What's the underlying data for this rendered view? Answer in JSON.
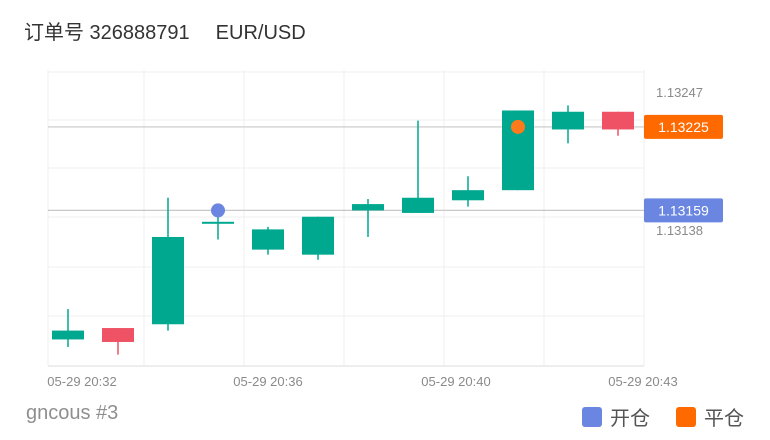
{
  "header": {
    "order_label": "订单号 326888791",
    "symbol": "EUR/USD"
  },
  "footer": {
    "account": "gncous #3"
  },
  "legend": [
    {
      "label": "开仓",
      "color": "#6b86e0"
    },
    {
      "label": "平仓",
      "color": "#ff6a00"
    }
  ],
  "colors": {
    "up": "#00a88f",
    "down": "#ee5264",
    "open_marker": "#6b86e0",
    "close_marker": "#ff7a1a",
    "close_price_badge": "#ff6a00",
    "open_price_badge": "#6b86e0"
  },
  "chart_data": {
    "type": "candlestick",
    "x_tick_labels": [
      "05-29 20:32",
      "05-29 20:36",
      "05-29 20:40",
      "05-29 20:43"
    ],
    "y_tick_labels": [
      "1.13247",
      "1.13138"
    ],
    "ylim": [
      1.13036,
      1.1327
    ],
    "grid": true,
    "candles": [
      {
        "open": 1.13057,
        "close": 1.13064,
        "high": 1.13081,
        "low": 1.13051
      },
      {
        "open": 1.13066,
        "close": 1.13055,
        "high": 1.13066,
        "low": 1.13045
      },
      {
        "open": 1.13069,
        "close": 1.13138,
        "high": 1.13169,
        "low": 1.13064
      },
      {
        "open": 1.13149,
        "close": 1.1315,
        "high": 1.13159,
        "low": 1.13136
      },
      {
        "open": 1.13128,
        "close": 1.13144,
        "high": 1.13146,
        "low": 1.13124
      },
      {
        "open": 1.13124,
        "close": 1.13154,
        "high": 1.13154,
        "low": 1.1312
      },
      {
        "open": 1.13159,
        "close": 1.13164,
        "high": 1.13168,
        "low": 1.13138
      },
      {
        "open": 1.13157,
        "close": 1.13169,
        "high": 1.1323,
        "low": 1.13157
      },
      {
        "open": 1.13167,
        "close": 1.13175,
        "high": 1.13186,
        "low": 1.13162
      },
      {
        "open": 1.13175,
        "close": 1.13238,
        "high": 1.13238,
        "low": 1.13175
      },
      {
        "open": 1.13223,
        "close": 1.13237,
        "high": 1.13242,
        "low": 1.13212
      },
      {
        "open": 1.13237,
        "close": 1.13223,
        "high": 1.13237,
        "low": 1.13218
      }
    ],
    "open_marker": {
      "candle_index": 3,
      "price": 1.13159
    },
    "close_marker": {
      "candle_index": 9,
      "price": 1.13225
    },
    "open_price_badge": "1.13159",
    "close_price_badge": "1.13225"
  }
}
